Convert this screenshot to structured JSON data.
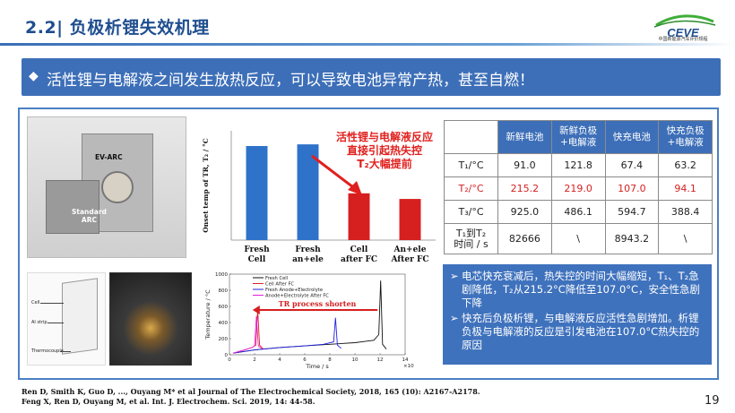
{
  "header": {
    "title": "2.2| 负极析锂失效机理",
    "logo_text": "CEVE",
    "logo_subtext": "中国新能源汽车评价规程"
  },
  "banner": {
    "bullet": "◆",
    "text": "活性锂与电解液之间发生放热反应，可以导致电池异常产热，甚至自燃！"
  },
  "photo_labels": {
    "ev_arc": "EV-ARC",
    "standard_arc_line1": "Standard",
    "standard_arc_line2": "ARC",
    "cell": "Cell",
    "al_strip": "Al strip",
    "thermocouple": "Thermocouple"
  },
  "chart_data": [
    {
      "type": "bar",
      "ylabel": "Onset temp of TR, T₂ / °C",
      "categories": [
        "Fresh Cell",
        "Fresh an+ele",
        "Cell after FC",
        "An+ele After FC"
      ],
      "category_lines": [
        [
          "Fresh",
          "Cell"
        ],
        [
          "Fresh",
          "an+ele"
        ],
        [
          "Cell",
          "after FC"
        ],
        [
          "An+ele",
          "After FC"
        ]
      ],
      "values": [
        215.2,
        219.0,
        107.0,
        94.1
      ],
      "colors": [
        "#2f72c9",
        "#2f72c9",
        "#d61f1f",
        "#d61f1f"
      ],
      "ylim": [
        0,
        250
      ],
      "annotation": [
        "活性锂与电解液反应",
        "直接引起热失控",
        "T₂大幅提前"
      ]
    },
    {
      "type": "line",
      "xlabel": "Time / s",
      "ylabel": "Temperature / °C",
      "x_multiplier_label": "×10⁴",
      "xlim": [
        0,
        14
      ],
      "ylim": [
        0,
        1000
      ],
      "xticks": [
        "0",
        "2",
        "4",
        "6",
        "8",
        "10",
        "12",
        "14"
      ],
      "yticks": [
        "0",
        "200",
        "400",
        "600",
        "800",
        "1000"
      ],
      "annotation": "TR process shorten",
      "series": [
        {
          "name": "Fresh Cell",
          "color": "#111111",
          "x": [
            0.3,
            2,
            4,
            6,
            8,
            10,
            11.5,
            11.9,
            12.05,
            12.2,
            12.5
          ],
          "y": [
            20,
            60,
            90,
            110,
            130,
            150,
            180,
            250,
            920,
            130,
            70
          ]
        },
        {
          "name": "Cell After FC",
          "color": "#e02020",
          "x": [
            0.3,
            1.2,
            1.8,
            2.1,
            2.25,
            2.4,
            2.7
          ],
          "y": [
            20,
            60,
            90,
            120,
            560,
            120,
            70
          ]
        },
        {
          "name": "Fresh Anode+Electrolyte",
          "color": "#2020e0",
          "x": [
            0.3,
            2,
            4,
            6,
            7.5,
            8.3,
            8.45,
            8.6,
            8.9
          ],
          "y": [
            20,
            60,
            90,
            110,
            130,
            160,
            460,
            120,
            80
          ]
        },
        {
          "name": "Anode+Electrolyte After FC",
          "color": "#e020e0",
          "x": [
            0.3,
            1.2,
            1.8,
            2.0,
            2.15,
            2.3,
            2.6
          ],
          "y": [
            20,
            60,
            90,
            110,
            480,
            110,
            70
          ]
        }
      ]
    }
  ],
  "table": {
    "headers": [
      "",
      "新鲜电池",
      "新鲜负极\n+电解液",
      "快充电池",
      "快充负极\n+电解液"
    ],
    "rows": [
      {
        "label": "T₁/°C",
        "values": [
          "91.0",
          "121.8",
          "67.4",
          "63.2"
        ],
        "highlight": false
      },
      {
        "label": "T₂/°C",
        "values": [
          "215.2",
          "219.0",
          "107.0",
          "94.1"
        ],
        "highlight": true
      },
      {
        "label": "T₃/°C",
        "values": [
          "925.0",
          "486.1",
          "594.7",
          "388.4"
        ],
        "highlight": false
      },
      {
        "label": "T₁到T₂\n时间 / s",
        "values": [
          "82666",
          "\\",
          "8943.2",
          "\\"
        ],
        "highlight": false
      }
    ]
  },
  "notes": [
    "电芯快充衰减后，热失控的时间大幅缩短，T₁、T₂急剧降低，T₂从215.2°C降低至107.0°C，安全性急剧下降",
    "快充后负极析锂，与电解液反应活性急剧增加。析锂负极与电解液的反应是引发电池在107.0°C热失控的原因"
  ],
  "references": [
    "Ren D, Smith K, Guo D, ..., Ouyang M* et al Journal of The Electrochemical Society, 2018, 165 (10): A2167-A2178.",
    "Feng X, Ren D, Ouyang M, et al. Int. J. Electrochem. Sci. 2019, 14: 44-58."
  ],
  "page_number": "19"
}
